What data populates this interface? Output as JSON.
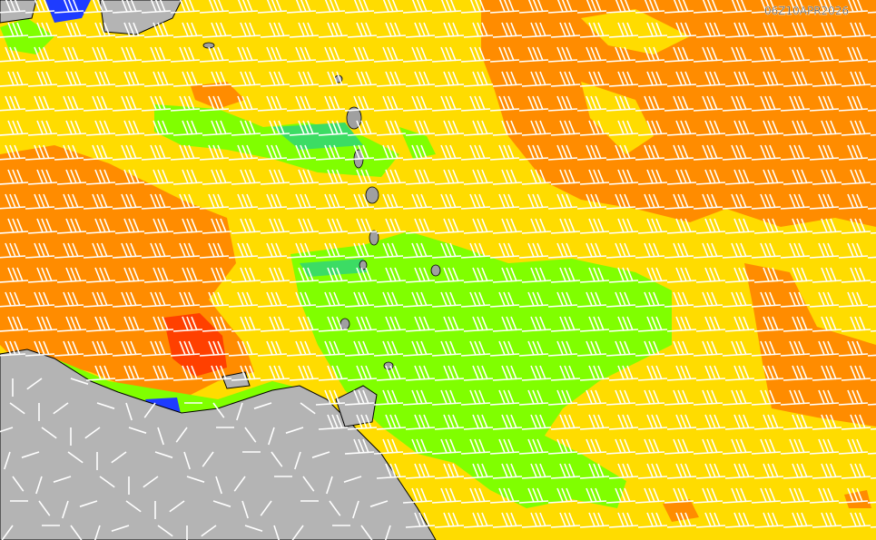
{
  "timestamp": "06Z10APR2026"
}
